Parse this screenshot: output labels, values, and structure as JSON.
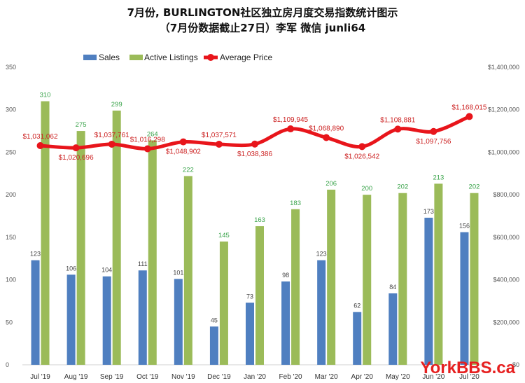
{
  "title": "7月份, BURLINGTON社区独立房月度交易指数统计图示",
  "subtitle": "（7月份数据截止27日）李军 微信 junli64",
  "watermark": "YorkBBS.ca",
  "colors": {
    "sales": "#4f7fc0",
    "listings": "#9bbb59",
    "price": "#e8151b"
  },
  "chart_data": {
    "type": "bar",
    "title": "7月份, BURLINGTON社区独立房月度交易指数统计图示",
    "subtitle": "（7月份数据截止27日）李军 微信 junli64",
    "categories": [
      "Jul '19",
      "Aug '19",
      "Sep '19",
      "Oct '19",
      "Nov '19",
      "Dec '19",
      "Jan '20",
      "Feb '20",
      "Mar '20",
      "Apr '20",
      "May '20",
      "Jun '20",
      "Jul '20"
    ],
    "series": [
      {
        "name": "Sales",
        "type": "bar",
        "axis": "left",
        "values": [
          123,
          106,
          104,
          111,
          101,
          45,
          73,
          98,
          123,
          62,
          84,
          173,
          156
        ]
      },
      {
        "name": "Active Listings",
        "type": "bar",
        "axis": "left",
        "values": [
          310,
          275,
          299,
          264,
          222,
          145,
          163,
          183,
          206,
          200,
          202,
          213,
          202
        ]
      },
      {
        "name": "Average Price",
        "type": "line",
        "axis": "right",
        "values": [
          1031062,
          1020696,
          1037761,
          1016298,
          1048902,
          1037571,
          1038386,
          1109945,
          1068890,
          1026542,
          1108881,
          1097756,
          1168015
        ],
        "labels": [
          "$1,031,062",
          "$1,020,696",
          "$1,037,761",
          "$1,016,298",
          "$1,048,902",
          "$1,037,571",
          "$1,038,386",
          "$1,109,945",
          "$1,068,890",
          "$1,026,542",
          "$1,108,881",
          "$1,097,756",
          "$1,168,015"
        ]
      }
    ],
    "ylim_left": [
      0,
      350
    ],
    "yticks_left": [
      "0",
      "50",
      "100",
      "150",
      "200",
      "250",
      "300",
      "350"
    ],
    "ylim_right": [
      0,
      1400000
    ],
    "yticks_right": [
      "$0",
      "$200,000",
      "$400,000",
      "$600,000",
      "$800,000",
      "$1,000,000",
      "$1,200,000",
      "$1,400,000"
    ],
    "legend": [
      "Sales",
      "Active Listings",
      "Average Price"
    ],
    "legend_position": "top-center",
    "grid": false
  }
}
